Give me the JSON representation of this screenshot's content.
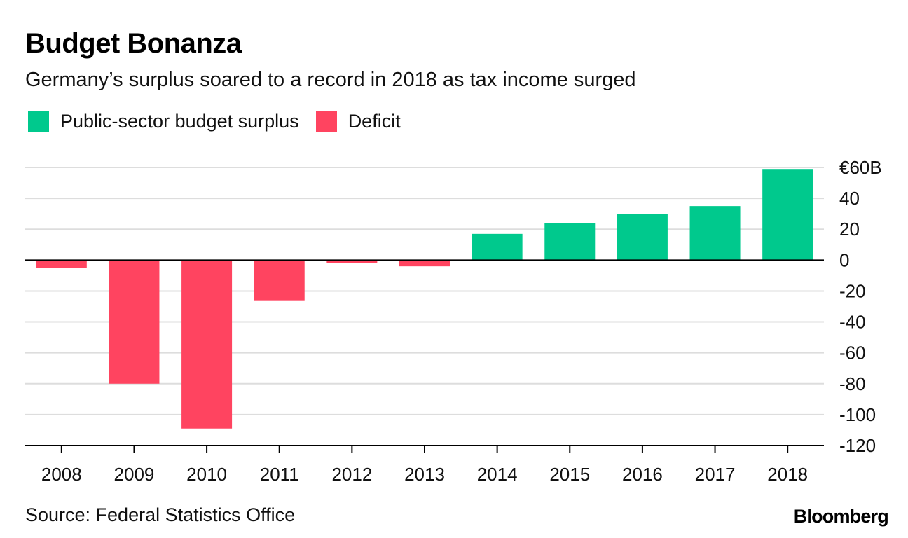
{
  "title": "Budget Bonanza",
  "subtitle": "Germany’s surplus soared to a record in 2018 as tax income surged",
  "legend": {
    "surplus_label": "Public-sector budget surplus",
    "deficit_label": "Deficit"
  },
  "colors": {
    "surplus": "#00c98d",
    "deficit": "#ff4460",
    "grid": "#dddddd",
    "axis": "#000000"
  },
  "source": "Source: Federal Statistics Office",
  "brand": "Bloomberg",
  "chart_data": {
    "type": "bar",
    "title": "Budget Bonanza",
    "subtitle": "Germany’s surplus soared to a record in 2018 as tax income surged",
    "categories": [
      "2008",
      "2009",
      "2010",
      "2011",
      "2012",
      "2013",
      "2014",
      "2015",
      "2016",
      "2017",
      "2018"
    ],
    "values": [
      -5,
      -80,
      -109,
      -26,
      -2,
      -4,
      17,
      24,
      30,
      35,
      59
    ],
    "unit": "€B",
    "ylim": [
      -120,
      60
    ],
    "yticks": [
      60,
      40,
      20,
      0,
      -20,
      -40,
      -60,
      -80,
      -100,
      -120
    ],
    "ytick_labels": [
      "€60B",
      "40",
      "20",
      "0",
      "-20",
      "-40",
      "-60",
      "-80",
      "-100",
      "-120"
    ],
    "xlabel": "",
    "ylabel": "",
    "grid": true,
    "legend_position": "top-left",
    "series": [
      {
        "name": "Public-sector budget surplus",
        "color": "#00c98d"
      },
      {
        "name": "Deficit",
        "color": "#ff4460"
      }
    ]
  }
}
